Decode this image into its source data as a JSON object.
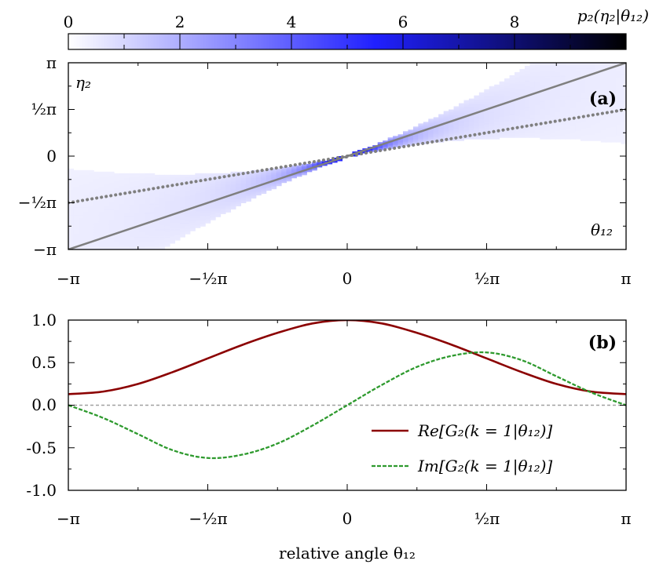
{
  "chart_data": [
    {
      "type": "heatmap",
      "panel_label": "(a)",
      "colorbar": {
        "label": "p₂(η₂|θ₁₂)",
        "ticks": [
          "0",
          "2",
          "4",
          "6",
          "8"
        ],
        "range": [
          0,
          10
        ],
        "colors": [
          "#ffffff",
          "#1e1eff",
          "#000000"
        ]
      },
      "x_ticks": [
        "−π",
        "−½π",
        "0",
        "½π",
        "π"
      ],
      "y_ticks": [
        "π",
        "½π",
        "0",
        "−½π",
        "−π"
      ],
      "xlim": [
        -3.1416,
        3.1416
      ],
      "ylim": [
        -3.1416,
        3.1416
      ],
      "axis_labels_in_plot": {
        "y": "η₂",
        "x": "θ₁₂"
      },
      "reference_lines": [
        {
          "style": "solid",
          "color": "#7f7f7f",
          "slope": 1.0,
          "intercept": 0
        },
        {
          "style": "dotted",
          "color": "#7f7f7f",
          "slope": 0.5,
          "intercept": 0
        }
      ],
      "distribution": {
        "center_slope": 0.9,
        "peak_value": 9.5,
        "width_at_center": 0.05,
        "width_at_edges": 2.4
      }
    },
    {
      "type": "line",
      "panel_label": "(b)",
      "xlabel": "relative angle θ₁₂",
      "x_ticks": [
        "−π",
        "−½π",
        "0",
        "½π",
        "π"
      ],
      "y_ticks": [
        "1.0",
        "0.5",
        "0.0",
        "-0.5",
        "-1.0"
      ],
      "xlim": [
        -3.1416,
        3.1416
      ],
      "ylim": [
        -1.0,
        1.0
      ],
      "series": [
        {
          "name": "Re[G₂(k = 1|θ₁₂)]",
          "style": "solid",
          "color": "#8b0000",
          "x": [
            -3.1416,
            -2.7489,
            -2.3562,
            -1.9635,
            -1.5708,
            -1.1781,
            -0.7854,
            -0.3927,
            0.0,
            0.3927,
            0.7854,
            1.1781,
            1.5708,
            1.9635,
            2.3562,
            2.7489,
            3.1416
          ],
          "y": [
            0.13,
            0.16,
            0.25,
            0.39,
            0.55,
            0.71,
            0.85,
            0.96,
            1.0,
            0.96,
            0.85,
            0.71,
            0.55,
            0.39,
            0.25,
            0.16,
            0.13
          ]
        },
        {
          "name": "Im[G₂(k = 1|θ₁₂)]",
          "style": "dashed",
          "color": "#2e9a2e",
          "x": [
            -3.1416,
            -2.7489,
            -2.3562,
            -1.9635,
            -1.5708,
            -1.1781,
            -0.7854,
            -0.3927,
            0.0,
            0.3927,
            0.7854,
            1.1781,
            1.5708,
            1.9635,
            2.3562,
            2.7489,
            3.1416
          ],
          "y": [
            0.0,
            -0.15,
            -0.34,
            -0.53,
            -0.62,
            -0.58,
            -0.45,
            -0.24,
            0.0,
            0.24,
            0.45,
            0.58,
            0.62,
            0.53,
            0.34,
            0.15,
            0.0
          ]
        }
      ],
      "zero_line": {
        "style": "dashed",
        "color": "#a0a0a0"
      },
      "legend_position": "bottom-right"
    }
  ]
}
